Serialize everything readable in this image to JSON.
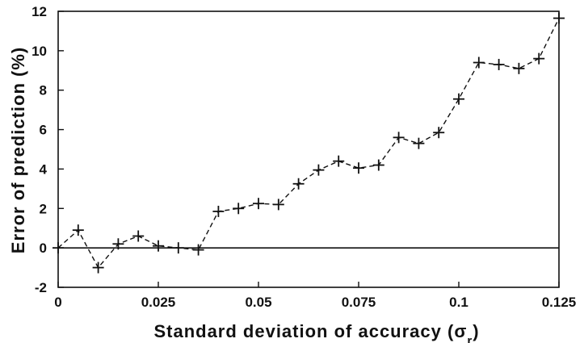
{
  "chart_data": {
    "type": "line",
    "title": "",
    "xlabel": "Standard deviation of accuracy (σ",
    "xlabel_subscript": "r",
    "xlabel_suffix": ")",
    "ylabel": "Error of prediction (%)",
    "xlim": [
      0,
      0.125
    ],
    "ylim": [
      -2,
      12
    ],
    "xticks": [
      0,
      0.025,
      0.05,
      0.075,
      0.1,
      0.125
    ],
    "xtick_labels": [
      "0",
      "0.025",
      "0.05",
      "0.075",
      "0.1",
      "0.125"
    ],
    "yticks": [
      -2,
      0,
      2,
      4,
      6,
      8,
      10,
      12
    ],
    "ytick_labels": [
      "-2",
      "0",
      "2",
      "4",
      "6",
      "8",
      "10",
      "12"
    ],
    "grid": false,
    "reference_line_y": 0,
    "series": [
      {
        "line_style": "dashed",
        "marker": "plus",
        "color": "#111111",
        "x": [
          0,
          0.005,
          0.01,
          0.015,
          0.02,
          0.025,
          0.03,
          0.035,
          0.04,
          0.045,
          0.05,
          0.055,
          0.06,
          0.065,
          0.07,
          0.075,
          0.08,
          0.085,
          0.09,
          0.095,
          0.1,
          0.105,
          0.11,
          0.115,
          0.12,
          0.125
        ],
        "y": [
          0,
          0.9,
          -1.0,
          0.2,
          0.6,
          0.1,
          0.0,
          -0.1,
          1.85,
          2.0,
          2.25,
          2.2,
          3.25,
          3.95,
          4.4,
          4.05,
          4.2,
          5.6,
          5.3,
          5.85,
          7.55,
          9.4,
          9.3,
          9.1,
          9.6,
          11.65
        ]
      }
    ]
  }
}
